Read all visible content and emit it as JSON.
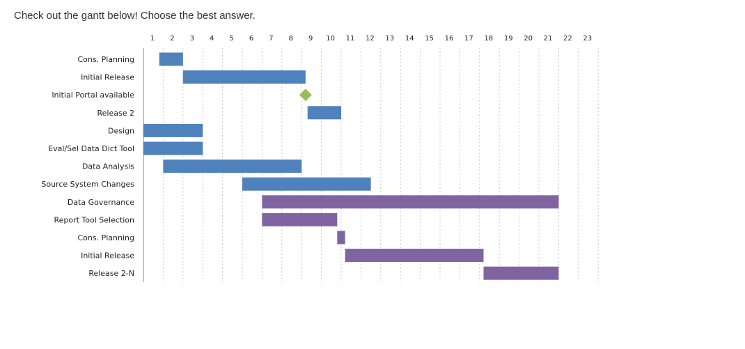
{
  "prompt": "Check out the gantt below! Choose the best answer.",
  "chart_data": {
    "type": "gantt",
    "title": "",
    "x_ticks": [
      "1",
      "2",
      "3",
      "4",
      "5",
      "6",
      "7",
      "8",
      "9",
      "10",
      "11",
      "12",
      "13",
      "14",
      "15",
      "16",
      "17",
      "18",
      "19",
      "20",
      "21",
      "22",
      "23"
    ],
    "xlim": [
      1,
      23
    ],
    "grid": true,
    "tasks": [
      {
        "label": "Cons. Planning",
        "kind": "bar",
        "start": 1.8,
        "end": 3.0,
        "color": "#4f81bd"
      },
      {
        "label": "Initial Release",
        "kind": "bar",
        "start": 3.0,
        "end": 9.2,
        "color": "#4f81bd"
      },
      {
        "label": "Initial Portal available",
        "kind": "milestone",
        "at": 9.2,
        "color": "#9bbb59"
      },
      {
        "label": "Release 2",
        "kind": "bar",
        "start": 9.3,
        "end": 11.0,
        "color": "#4f81bd"
      },
      {
        "label": "Design",
        "kind": "bar",
        "start": 1.0,
        "end": 4.0,
        "color": "#4f81bd"
      },
      {
        "label": "Eval/Sel Data Dict Tool",
        "kind": "bar",
        "start": 1.0,
        "end": 4.0,
        "color": "#4f81bd"
      },
      {
        "label": "Data Analysis",
        "kind": "bar",
        "start": 2.0,
        "end": 9.0,
        "color": "#4f81bd"
      },
      {
        "label": "Source System Changes",
        "kind": "bar",
        "start": 6.0,
        "end": 12.5,
        "color": "#4f81bd"
      },
      {
        "label": "Data Governance",
        "kind": "bar",
        "start": 7.0,
        "end": 22.0,
        "color": "#8064a2"
      },
      {
        "label": "Report Tool Selection",
        "kind": "bar",
        "start": 7.0,
        "end": 10.8,
        "color": "#8064a2"
      },
      {
        "label": "Cons. Planning",
        "kind": "bar",
        "start": 10.8,
        "end": 11.2,
        "color": "#8064a2"
      },
      {
        "label": "Initial Release",
        "kind": "bar",
        "start": 11.2,
        "end": 18.2,
        "color": "#8064a2"
      },
      {
        "label": "Release 2-N",
        "kind": "bar",
        "start": 18.2,
        "end": 22.0,
        "color": "#8064a2"
      }
    ]
  }
}
